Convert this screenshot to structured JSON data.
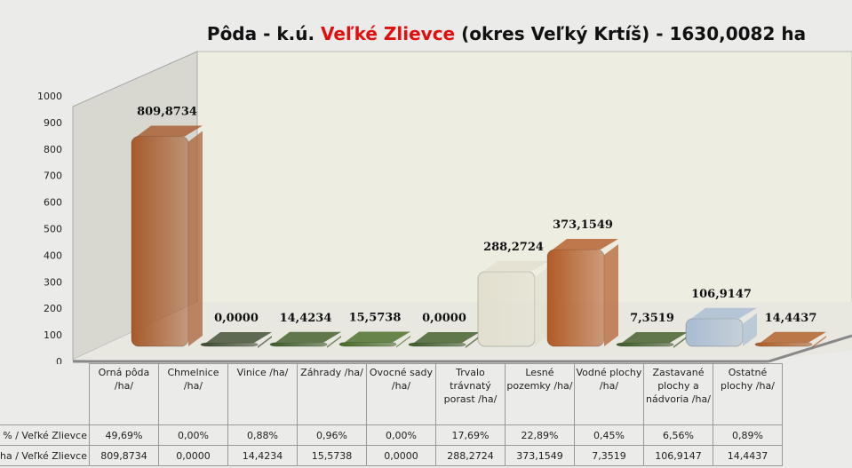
{
  "title": {
    "prefix": "Pôda - k.ú. ",
    "highlight": "Veľké Zlievce",
    "suffix": " (okres Veľký Krtíš) - 1630,0082 ha"
  },
  "chart_data": {
    "type": "bar",
    "style": "3d",
    "title": "Pôda - k.ú. Veľké Zlievce (okres Veľký Krtíš) - 1630,0082 ha",
    "ylim": [
      0,
      1000
    ],
    "yticks": [
      "0",
      "100",
      "200",
      "300",
      "400",
      "500",
      "600",
      "700",
      "800",
      "900",
      "1000"
    ],
    "categories": [
      "Orná pôda /ha/",
      "Chmelnice /ha/",
      "Vinice /ha/",
      "Záhrady /ha/",
      "Ovocné sady /ha/",
      "Trvalo trávnatý porast /ha/",
      "Lesné pozemky /ha/",
      "Vodné plochy /ha/",
      "Zastavané plochy a nádvoria /ha/",
      "Ostatné plochy /ha/"
    ],
    "values": [
      809.8734,
      0,
      14.4234,
      15.5738,
      0,
      288.2724,
      373.1549,
      7.3519,
      106.9147,
      14.4437
    ],
    "data_labels": [
      "809,8734",
      "0,0000",
      "14,4234",
      "15,5738",
      "0,0000",
      "288,2724",
      "373,1549",
      "7,3519",
      "106,9147",
      "14,4437"
    ],
    "colors": [
      "#a65a2c",
      "#3c4a30",
      "#3c5a26",
      "#466a26",
      "#3c5a26",
      "#e2dfcf",
      "#b25a26",
      "#3c5a26",
      "#a9bcd2",
      "#b05a22"
    ],
    "table": {
      "rows": [
        {
          "label": "% / Veľké Zlievce",
          "values": [
            "49,69%",
            "0,00%",
            "0,88%",
            "0,96%",
            "0,00%",
            "17,69%",
            "22,89%",
            "0,45%",
            "6,56%",
            "0,89%"
          ]
        },
        {
          "label": "ha / Veľké Zlievce",
          "values": [
            "809,8734",
            "0,0000",
            "14,4234",
            "15,5738",
            "0,0000",
            "288,2724",
            "373,1549",
            "7,3519",
            "106,9147",
            "14,4437"
          ]
        }
      ]
    }
  }
}
